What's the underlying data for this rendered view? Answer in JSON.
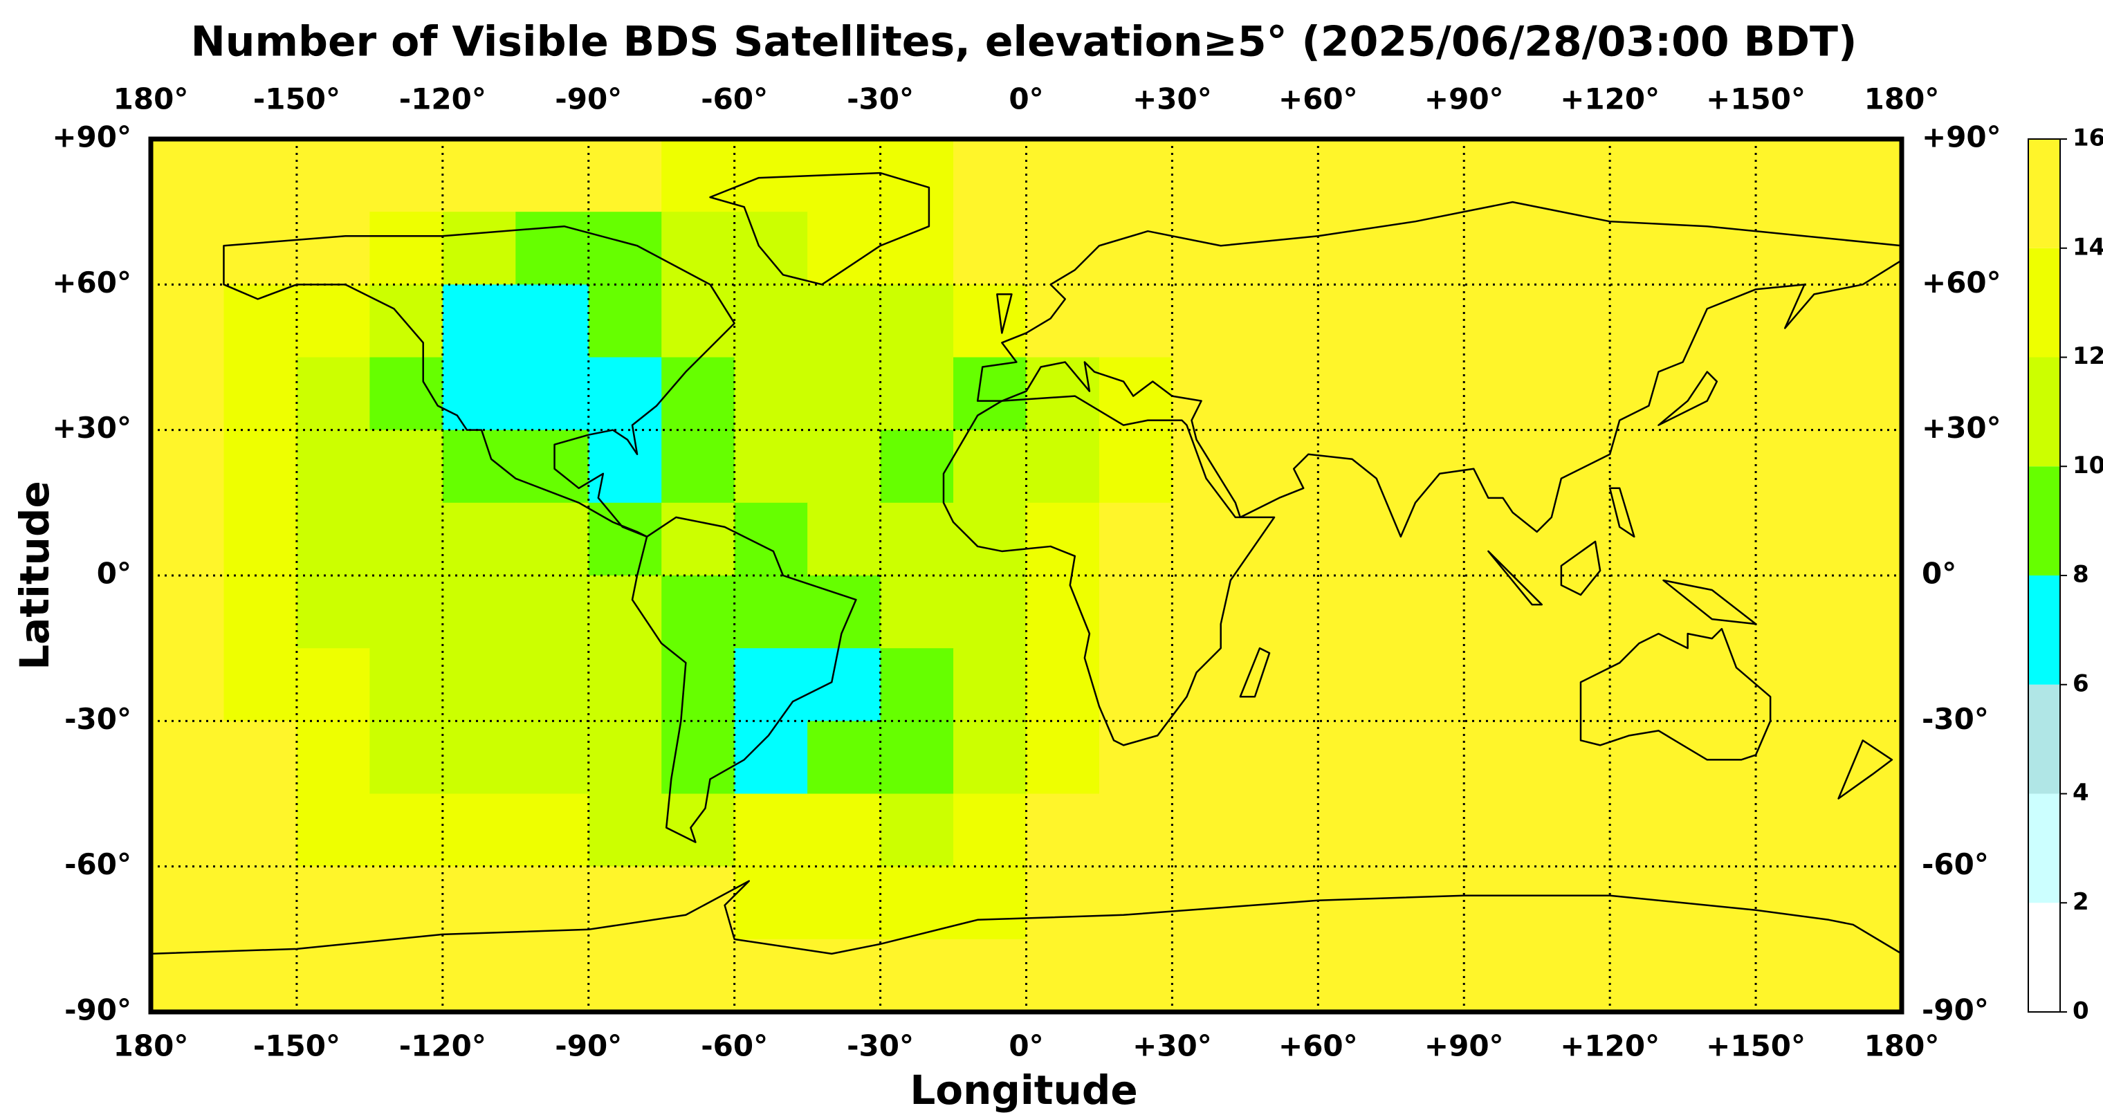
{
  "chart_data": {
    "type": "heatmap",
    "title": "Number of Visible BDS Satellites, elevation≥5° (2025/06/28/03:00 BDT)",
    "x_label": "Longitude",
    "y_label": "Latitude",
    "xlim": [
      -180,
      180
    ],
    "ylim": [
      -90,
      90
    ],
    "xticks": [
      {
        "value": -180,
        "label": "180°"
      },
      {
        "value": -150,
        "label": "-150°"
      },
      {
        "value": -120,
        "label": "-120°"
      },
      {
        "value": -90,
        "label": "-90°"
      },
      {
        "value": -60,
        "label": "-60°"
      },
      {
        "value": -30,
        "label": "-30°"
      },
      {
        "value": 0,
        "label": "0°"
      },
      {
        "value": 30,
        "label": "+30°"
      },
      {
        "value": 60,
        "label": "+60°"
      },
      {
        "value": 90,
        "label": "+90°"
      },
      {
        "value": 120,
        "label": "+120°"
      },
      {
        "value": 150,
        "label": "+150°"
      },
      {
        "value": 180,
        "label": "180°"
      }
    ],
    "yticks": [
      {
        "value": 90,
        "label": "+90°"
      },
      {
        "value": 60,
        "label": "+60°"
      },
      {
        "value": 30,
        "label": "+30°"
      },
      {
        "value": 0,
        "label": "0°"
      },
      {
        "value": -30,
        "label": "-30°"
      },
      {
        "value": -60,
        "label": "-60°"
      },
      {
        "value": -90,
        "label": "-90°"
      }
    ],
    "grid": true,
    "colorbar_ticks": [
      0,
      2,
      4,
      6,
      8,
      10,
      12,
      14,
      16
    ],
    "colorbar_colors": [
      "#ffffff",
      "#ccffff",
      "#b0e6e6",
      "#00ffff",
      "#66ff00",
      "#ccff00",
      "#eeff00",
      "#fff52a"
    ],
    "field": [
      [
        15,
        15,
        15,
        15,
        15,
        15,
        15,
        13,
        13,
        13,
        13,
        15,
        15,
        15,
        15,
        15,
        15,
        15,
        15,
        15,
        15,
        15,
        15,
        15
      ],
      [
        15,
        15,
        15,
        13,
        11,
        9,
        9,
        11,
        11,
        13,
        13,
        15,
        15,
        15,
        15,
        15,
        15,
        15,
        15,
        15,
        15,
        15,
        15,
        15
      ],
      [
        15,
        13,
        13,
        11,
        7,
        7,
        9,
        11,
        11,
        11,
        11,
        13,
        15,
        15,
        15,
        15,
        15,
        15,
        15,
        15,
        15,
        15,
        15,
        15
      ],
      [
        15,
        13,
        11,
        9,
        7,
        7,
        7,
        9,
        11,
        11,
        11,
        9,
        11,
        13,
        15,
        15,
        15,
        15,
        15,
        15,
        15,
        15,
        15,
        15
      ],
      [
        15,
        13,
        11,
        11,
        9,
        9,
        7,
        9,
        11,
        11,
        9,
        11,
        11,
        13,
        15,
        15,
        15,
        15,
        15,
        15,
        15,
        15,
        15,
        15
      ],
      [
        15,
        13,
        11,
        11,
        11,
        11,
        9,
        11,
        9,
        11,
        11,
        11,
        13,
        15,
        15,
        15,
        15,
        15,
        15,
        15,
        15,
        15,
        15,
        15
      ],
      [
        15,
        13,
        11,
        11,
        11,
        11,
        11,
        9,
        9,
        9,
        11,
        11,
        13,
        15,
        15,
        15,
        15,
        15,
        15,
        15,
        15,
        15,
        15,
        15
      ],
      [
        15,
        13,
        13,
        11,
        11,
        11,
        11,
        9,
        7,
        7,
        9,
        11,
        13,
        15,
        15,
        15,
        15,
        15,
        15,
        15,
        15,
        15,
        15,
        15
      ],
      [
        15,
        15,
        13,
        11,
        11,
        11,
        11,
        9,
        7,
        9,
        9,
        11,
        13,
        15,
        15,
        15,
        15,
        15,
        15,
        15,
        15,
        15,
        15,
        15
      ],
      [
        15,
        15,
        13,
        13,
        13,
        13,
        11,
        11,
        13,
        13,
        11,
        13,
        15,
        15,
        15,
        15,
        15,
        15,
        15,
        15,
        15,
        15,
        15,
        15
      ],
      [
        15,
        15,
        15,
        15,
        15,
        15,
        15,
        15,
        13,
        13,
        13,
        13,
        15,
        15,
        15,
        15,
        15,
        15,
        15,
        15,
        15,
        15,
        15,
        15
      ],
      [
        15,
        15,
        15,
        15,
        15,
        15,
        15,
        15,
        15,
        15,
        15,
        15,
        15,
        15,
        15,
        15,
        15,
        15,
        15,
        15,
        15,
        15,
        15,
        15
      ]
    ]
  }
}
